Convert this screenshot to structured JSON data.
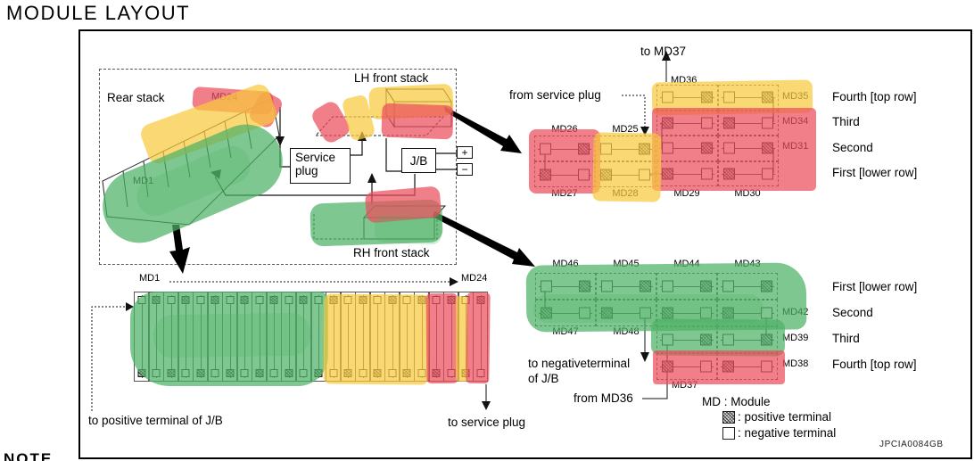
{
  "title": "MODULE LAYOUT",
  "note": "NOTE",
  "figure_code": "JPCIA0084GB",
  "colors": {
    "highlight_red": "#ec4d5c",
    "highlight_yellow": "#f8c93e",
    "highlight_green": "#4db266"
  },
  "overview": {
    "rear_stack_label": "Rear stack",
    "rear_stack_end_top": "MD24",
    "rear_stack_end_bottom": "MD1",
    "lh_front_stack_label": "LH front stack",
    "rh_front_stack_label": "RH front stack",
    "service_plug_line1": "Service",
    "service_plug_line2": "plug",
    "jb_label": "J/B",
    "plus": "+",
    "minus": "−"
  },
  "lh_detail": {
    "to_md37": "to MD37",
    "md36": "MD36",
    "from_service_plug": "from service plug",
    "left_top_labels": [
      "MD26",
      "MD25"
    ],
    "bottom_labels": [
      "MD27",
      "MD28",
      "MD29",
      "MD30"
    ],
    "rows": [
      {
        "md": "MD35",
        "name": "Fourth [top row]"
      },
      {
        "md": "MD34",
        "name": "Third"
      },
      {
        "md": "MD31",
        "name": "Second"
      },
      {
        "md": "",
        "name": "First [lower row]"
      }
    ]
  },
  "strip": {
    "start": "MD1",
    "end": "MD24",
    "module_count": 24,
    "to_positive": "to positive terminal of J/B",
    "to_service_plug": "to service plug",
    "color_spans": [
      {
        "color": "green",
        "from": 1,
        "to": 13
      },
      {
        "color": "yellow",
        "from": 14,
        "to": 20
      },
      {
        "color": "red",
        "from": 21,
        "to": 22
      },
      {
        "color": "yellow",
        "from": 23,
        "to": 23
      },
      {
        "color": "red",
        "from": 24,
        "to": 24
      }
    ]
  },
  "rh_detail": {
    "top_labels": [
      "MD46",
      "MD45",
      "MD44",
      "MD43"
    ],
    "mid_labels": [
      "MD47",
      "MD48"
    ],
    "md37": "MD37",
    "rows": [
      {
        "md": "",
        "name": "First [lower row]"
      },
      {
        "md": "MD42",
        "name": "Second"
      },
      {
        "md": "MD39",
        "name": "Third"
      },
      {
        "md": "MD38",
        "name": "Fourth [top row]"
      }
    ],
    "to_negative_line1": "to negativeterminal",
    "to_negative_line2": "of J/B",
    "from_md36": "from MD36"
  },
  "legend": {
    "md": "MD : Module",
    "positive": ": positive terminal",
    "negative": ": negative terminal"
  }
}
